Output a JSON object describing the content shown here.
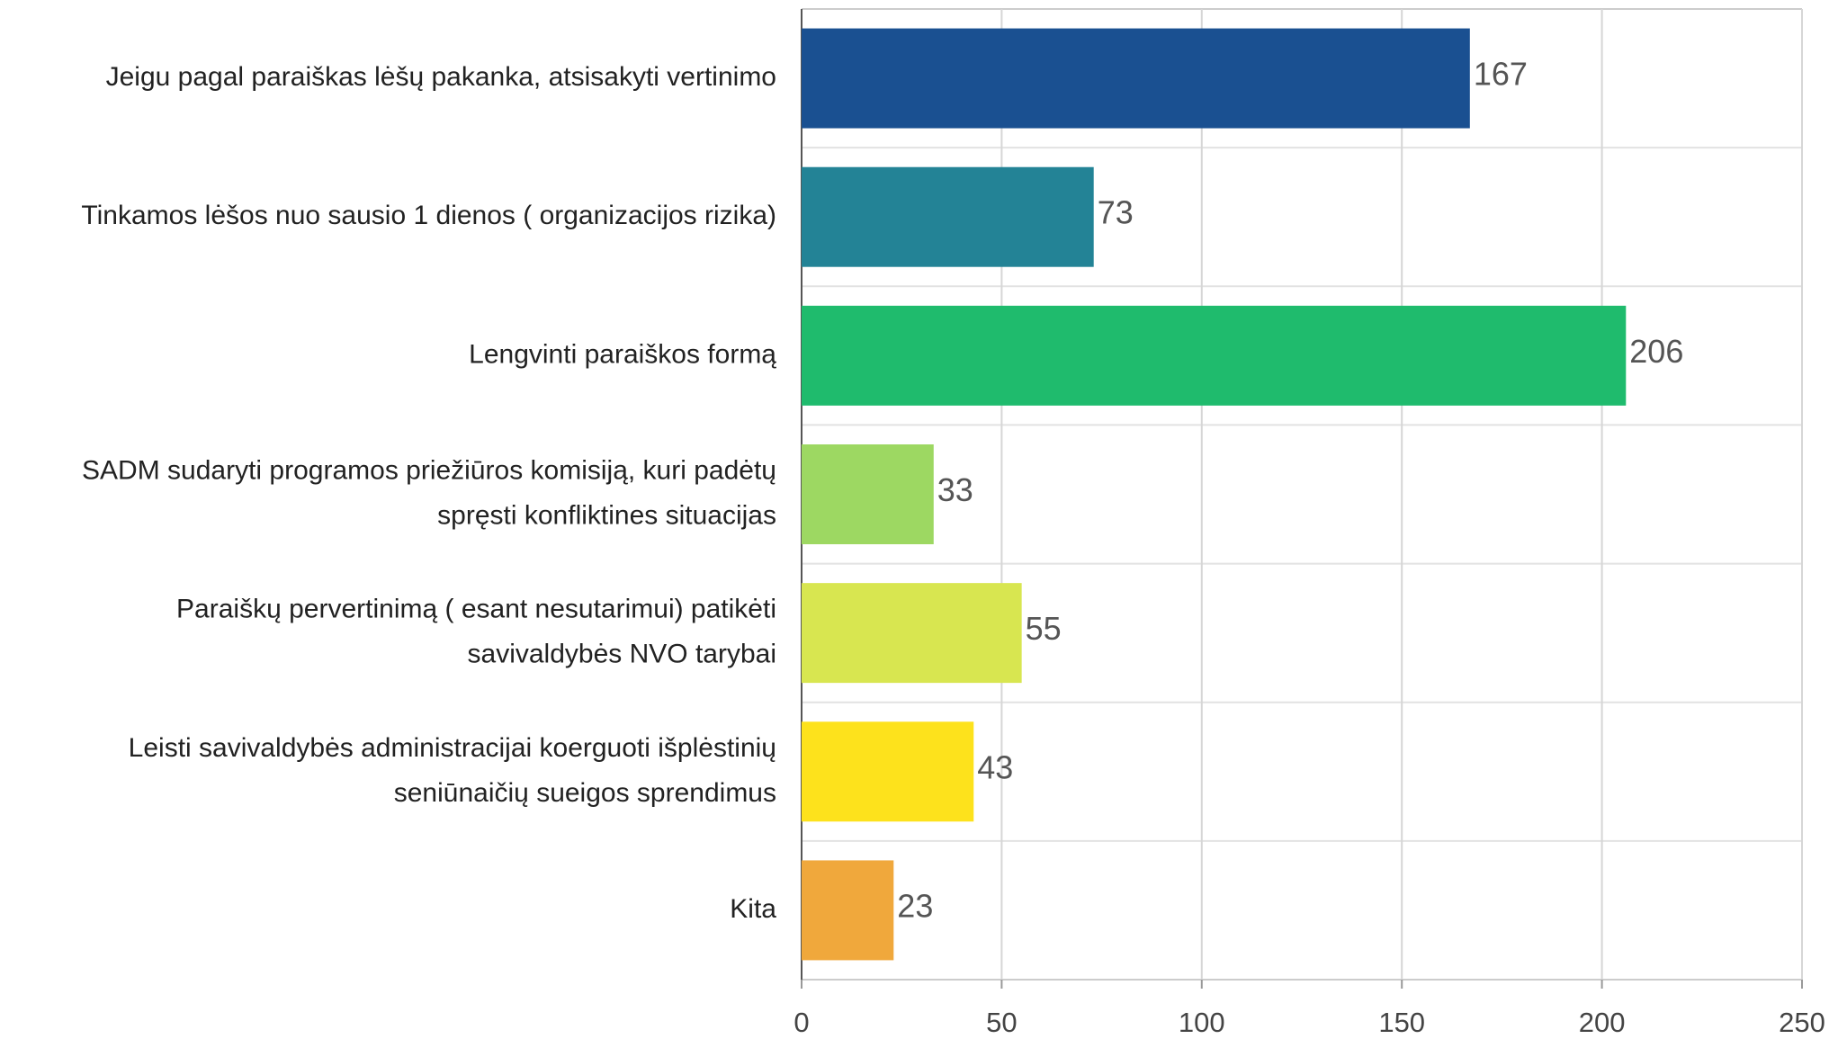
{
  "chart_data": {
    "type": "barh",
    "categories": [
      "Jeigu pagal paraiškas lėšų pakanka, atsisakyti vertinimo",
      "Tinkamos lėšos nuo sausio 1 dienos ( organizacijos rizika)",
      "Lengvinti paraiškos formą",
      [
        "SADM sudaryti programos priežiūros komisiją, kuri padėtų",
        "spręsti konfliktines situacijas"
      ],
      [
        "Paraiškų pervertinimą ( esant nesutarimui) patikėti",
        "savivaldybės NVO tarybai"
      ],
      [
        "Leisti savivaldybės administracijai koerguoti išplėstinių",
        "seniūnaičių sueigos sprendimus"
      ],
      "Kita"
    ],
    "values": [
      167,
      73,
      206,
      33,
      55,
      43,
      23
    ],
    "colors": [
      "#1a5091",
      "#238396",
      "#1fbb6d",
      "#9dd862",
      "#d8e650",
      "#fde21c",
      "#f0a83c"
    ],
    "xlim": [
      0,
      250
    ],
    "xticks": [
      0,
      50,
      100,
      150,
      200,
      250
    ],
    "grid": true
  }
}
